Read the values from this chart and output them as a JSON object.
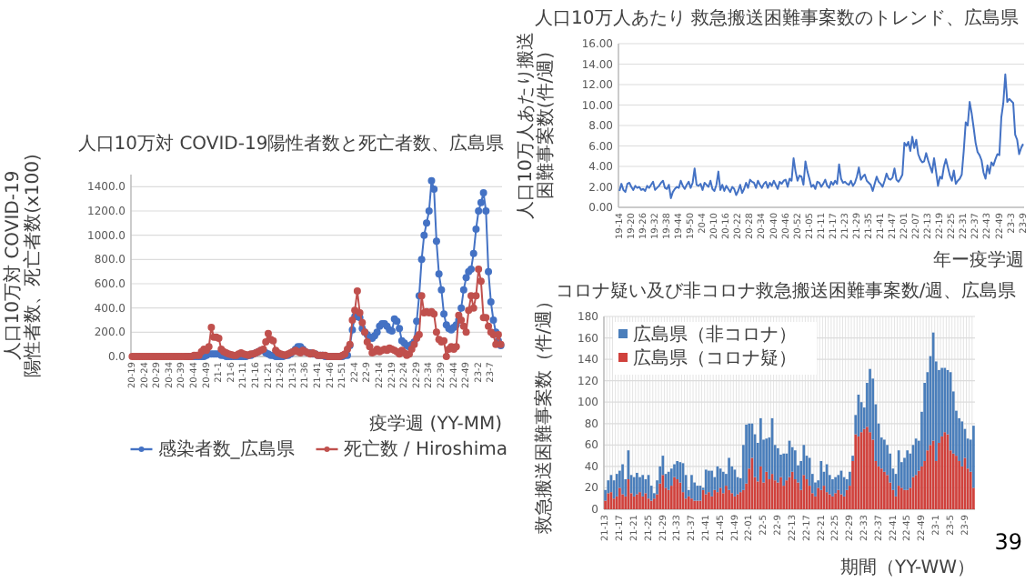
{
  "chart_data": [
    {
      "type": "line",
      "title": "人口10万対 COVID-19陽性者数と死亡者数、広島県",
      "ylabel": "人口10万対 COVID-19陽性者数、死亡者数(x100)",
      "xlabel": "疫学週 (YY-MM)",
      "legend": "bottom",
      "grid": "y",
      "marker": "circle",
      "ylim": [
        0,
        1500
      ],
      "yticks": [
        {
          "value": 0,
          "label": "0.0"
        },
        {
          "value": 200,
          "label": "200.0"
        },
        {
          "value": 400,
          "label": "400.0"
        },
        {
          "value": 600,
          "label": "600.0"
        },
        {
          "value": 800,
          "label": "800.0"
        },
        {
          "value": 1000,
          "label": "1000.0"
        },
        {
          "value": 1200,
          "label": "1200.0"
        },
        {
          "value": 1400,
          "label": "1400.0"
        }
      ],
      "categories": [
        "20-19",
        null,
        null,
        null,
        null,
        "20-24",
        null,
        null,
        null,
        null,
        "20-29",
        null,
        null,
        null,
        null,
        "20-34",
        null,
        null,
        null,
        null,
        "20-39",
        null,
        null,
        null,
        null,
        "20-44",
        null,
        null,
        null,
        null,
        "20-49",
        null,
        null,
        null,
        null,
        "21-1",
        null,
        null,
        null,
        null,
        "21-6",
        null,
        null,
        null,
        null,
        "21-11",
        null,
        null,
        null,
        null,
        "21-16",
        null,
        null,
        null,
        null,
        "21-21",
        null,
        null,
        null,
        null,
        "21-26",
        null,
        null,
        null,
        null,
        "21-31",
        null,
        null,
        null,
        null,
        "21-36",
        null,
        null,
        null,
        null,
        "21-41",
        null,
        null,
        null,
        null,
        "21-46",
        null,
        null,
        null,
        null,
        "21-51",
        null,
        null,
        null,
        null,
        "22-4",
        null,
        null,
        null,
        null,
        "22-9",
        null,
        null,
        null,
        null,
        "22-14",
        null,
        null,
        null,
        null,
        "22-19",
        null,
        null,
        null,
        null,
        "22-24",
        null,
        null,
        null,
        null,
        "22-29",
        null,
        null,
        null,
        null,
        "22-34",
        null,
        null,
        null,
        null,
        "22-39",
        null,
        null,
        null,
        null,
        "22-44",
        null,
        null,
        null,
        null,
        "22-49",
        null,
        null,
        null,
        null,
        "23-2",
        null,
        null,
        null,
        null,
        "23-7",
        null,
        null,
        null,
        null
      ],
      "series": [
        {
          "name": "感染者数_広島県",
          "color": "#4472c4",
          "values": [
            null,
            null,
            null,
            null,
            null,
            null,
            null,
            null,
            null,
            null,
            null,
            null,
            null,
            null,
            null,
            null,
            null,
            null,
            null,
            null,
            null,
            null,
            0,
            0,
            0,
            0,
            0,
            0,
            0,
            0,
            10,
            20,
            20,
            20,
            20,
            20,
            10,
            10,
            0,
            0,
            0,
            0,
            0,
            0,
            0,
            0,
            0,
            10,
            10,
            20,
            30,
            40,
            50,
            50,
            30,
            20,
            10,
            10,
            0,
            0,
            0,
            0,
            10,
            10,
            20,
            40,
            60,
            80,
            80,
            60,
            40,
            30,
            30,
            20,
            20,
            10,
            10,
            10,
            0,
            0,
            0,
            0,
            0,
            0,
            0,
            0,
            10,
            10,
            90,
            220,
            330,
            330,
            320,
            230,
            200,
            180,
            160,
            150,
            170,
            200,
            250,
            270,
            270,
            250,
            220,
            210,
            310,
            290,
            230,
            130,
            110,
            90,
            80,
            100,
            120,
            290,
            500,
            800,
            1000,
            1100,
            1200,
            1450,
            1380,
            950,
            680,
            550,
            350,
            260,
            230,
            220,
            240,
            260,
            300,
            400,
            550,
            650,
            700,
            720,
            850,
            1050,
            1200,
            1270,
            1350,
            1200,
            700,
            450,
            300,
            200,
            130,
            90
          ]
        },
        {
          "name": "死亡数 / Hiroshima",
          "color": "#c0504d",
          "values": [
            0,
            0,
            0,
            0,
            0,
            0,
            0,
            0,
            0,
            0,
            0,
            0,
            0,
            0,
            0,
            0,
            0,
            0,
            0,
            0,
            0,
            0,
            0,
            0,
            0,
            10,
            10,
            10,
            40,
            60,
            50,
            80,
            240,
            160,
            160,
            150,
            60,
            40,
            30,
            20,
            15,
            10,
            10,
            20,
            30,
            20,
            15,
            10,
            20,
            20,
            30,
            40,
            50,
            60,
            120,
            190,
            140,
            130,
            50,
            30,
            20,
            15,
            10,
            20,
            30,
            40,
            50,
            40,
            30,
            50,
            40,
            30,
            20,
            30,
            20,
            10,
            10,
            10,
            10,
            0,
            0,
            0,
            0,
            0,
            0,
            10,
            20,
            60,
            100,
            300,
            380,
            540,
            360,
            280,
            200,
            120,
            80,
            30,
            40,
            60,
            40,
            50,
            60,
            50,
            70,
            60,
            50,
            40,
            20,
            50,
            30,
            10,
            20,
            60,
            100,
            150,
            180,
            500,
            360,
            370,
            360,
            370,
            350,
            200,
            140,
            120,
            130,
            0,
            60,
            80,
            60,
            80,
            340,
            300,
            250,
            200,
            380,
            500,
            400,
            500,
            720,
            620,
            320,
            320,
            250,
            200,
            180,
            100,
            180,
            100
          ]
        }
      ]
    },
    {
      "type": "line",
      "title": "人口10万人あたり 救急搬送困難事案数のトレンド、広島県",
      "ylabel": "人口10万人あたり搬送困難事案数(件/週)",
      "xlabel": "年ー疫学週",
      "grid": "y",
      "ylim": [
        0,
        16
      ],
      "yticks": [
        {
          "value": 0,
          "label": "0.00"
        },
        {
          "value": 2,
          "label": "2.00"
        },
        {
          "value": 4,
          "label": "4.00"
        },
        {
          "value": 6,
          "label": "6.00"
        },
        {
          "value": 8,
          "label": "8.00"
        },
        {
          "value": 10,
          "label": "10.00"
        },
        {
          "value": 12,
          "label": "12.00"
        },
        {
          "value": 14,
          "label": "14.00"
        },
        {
          "value": 16,
          "label": "16.00"
        }
      ],
      "categories": [
        "19-14",
        null,
        null,
        null,
        null,
        null,
        "19-20",
        null,
        null,
        null,
        null,
        null,
        "19-26",
        null,
        null,
        null,
        null,
        null,
        "19-32",
        null,
        null,
        null,
        null,
        null,
        "19-38",
        null,
        null,
        null,
        null,
        null,
        "19-44",
        null,
        null,
        null,
        null,
        null,
        "19-50",
        null,
        null,
        null,
        null,
        null,
        "20-4",
        null,
        null,
        null,
        null,
        null,
        "20-10",
        null,
        null,
        null,
        null,
        null,
        "20-16",
        null,
        null,
        null,
        null,
        null,
        "20-22",
        null,
        null,
        null,
        null,
        null,
        "20-28",
        null,
        null,
        null,
        null,
        null,
        "20-34",
        null,
        null,
        null,
        null,
        null,
        "20-40",
        null,
        null,
        null,
        null,
        null,
        "20-46",
        null,
        null,
        null,
        null,
        null,
        "20-52",
        null,
        null,
        null,
        null,
        null,
        "21-05",
        null,
        null,
        null,
        null,
        null,
        "21-11",
        null,
        null,
        null,
        null,
        null,
        "21-17",
        null,
        null,
        null,
        null,
        null,
        "21-23",
        null,
        null,
        null,
        null,
        null,
        "21-29",
        null,
        null,
        null,
        null,
        null,
        "21-35",
        null,
        null,
        null,
        null,
        null,
        "21-41",
        null,
        null,
        null,
        null,
        null,
        "21-47",
        null,
        null,
        null,
        null,
        null,
        "22-01",
        null,
        null,
        null,
        null,
        null,
        "22-07",
        null,
        null,
        null,
        null,
        null,
        "22-13",
        null,
        null,
        null,
        null,
        null,
        "22-19",
        null,
        null,
        null,
        null,
        null,
        "22-25",
        null,
        null,
        null,
        null,
        null,
        "22-31",
        null,
        null,
        null,
        null,
        null,
        "22-37",
        null,
        null,
        null,
        null,
        null,
        "22-43",
        null,
        null,
        null,
        null,
        null,
        "22-49",
        null,
        null,
        null,
        null,
        null,
        "23-3",
        null,
        null,
        null,
        null,
        null,
        "23-9"
      ],
      "series": [
        {
          "color": "#4472c4",
          "values": [
            1.6,
            2.3,
            1.7,
            1.5,
            2.3,
            2.4,
            2.0,
            1.7,
            2.1,
            1.9,
            2.0,
            1.7,
            1.8,
            1.6,
            2.1,
            1.9,
            2.2,
            2.5,
            1.7,
            1.9,
            2.1,
            2.4,
            2.6,
            1.9,
            1.8,
            2.2,
            0.9,
            1.5,
            1.8,
            2.0,
            1.9,
            2.6,
            2.1,
            1.8,
            2.2,
            2.5,
            1.9,
            2.4,
            3.8,
            2.2,
            2.1,
            2.3,
            1.7,
            2.4,
            2.2,
            2.0,
            2.6,
            1.8,
            1.6,
            2.2,
            3.5,
            1.7,
            2.2,
            1.6,
            2.1,
            1.8,
            1.5,
            2.0,
            1.8,
            1.2,
            1.6,
            2.2,
            1.4,
            1.8,
            2.4,
            1.9,
            2.7,
            2.5,
            2.4,
            1.9,
            2.6,
            2.2,
            1.9,
            2.3,
            2.5,
            1.9,
            2.4,
            2.1,
            2.6,
            2.2,
            1.8,
            2.5,
            2.3,
            2.6,
            2.7,
            2.0,
            2.8,
            2.6,
            4.8,
            3.5,
            2.6,
            3.1,
            3.0,
            2.2,
            4.5,
            3.5,
            2.8,
            2.0,
            2.2,
            1.8,
            2.5,
            2.4,
            2.0,
            2.3,
            2.7,
            2.1,
            1.9,
            2.5,
            2.2,
            2.6,
            2.3,
            4.2,
            2.8,
            2.4,
            2.5,
            2.3,
            2.2,
            2.6,
            2.1,
            2.4,
            3.0,
            3.9,
            2.7,
            3.0,
            3.2,
            2.6,
            2.4,
            2.2,
            1.6,
            2.3,
            3.0,
            2.5,
            2.3,
            2.0,
            2.6,
            3.3,
            2.8,
            2.7,
            2.9,
            3.8,
            2.7,
            2.5,
            2.8,
            3.2,
            6.3,
            6.0,
            6.4,
            5.5,
            6.9,
            5.8,
            6.6,
            5.2,
            4.7,
            4.4,
            4.5,
            5.3,
            4.6,
            4.0,
            3.4,
            4.8,
            3.5,
            2.1,
            3.0,
            2.8,
            4.0,
            4.7,
            3.9,
            3.1,
            2.6,
            3.6,
            2.3,
            2.6,
            2.8,
            3.2,
            5.5,
            8.3,
            8.0,
            10.3,
            9.2,
            7.8,
            6.3,
            5.4,
            5.1,
            4.6,
            3.4,
            2.8,
            4.1,
            3.3,
            4.4,
            4.1,
            4.7,
            5.2,
            5.1,
            8.8,
            10.2,
            13.0,
            10.3,
            10.6,
            10.4,
            10.2,
            7.1,
            6.6,
            5.2,
            5.8,
            6.2
          ]
        }
      ]
    },
    {
      "type": "bar",
      "stacked": true,
      "title": "コロナ疑い及び非コロナ救急搬送困難事案数/週、広島県",
      "ylabel": "救急搬送困難事案数（件/週）",
      "xlabel": "期間（YY-WW）",
      "legend": "top left",
      "grid": true,
      "ylim": [
        0,
        180
      ],
      "yticks": [
        0,
        20,
        40,
        60,
        80,
        100,
        120,
        140,
        160,
        180
      ],
      "annotations": [
        "39"
      ],
      "categories": [
        "21-13",
        null,
        null,
        null,
        null,
        "21-17",
        null,
        null,
        null,
        null,
        "21-21",
        null,
        null,
        null,
        null,
        "21-25",
        null,
        null,
        null,
        null,
        "21-29",
        null,
        null,
        null,
        null,
        "21-33",
        null,
        null,
        null,
        null,
        "21-37",
        null,
        null,
        null,
        null,
        "21-41",
        null,
        null,
        null,
        null,
        "21-45",
        null,
        null,
        null,
        null,
        "21-49",
        null,
        null,
        null,
        null,
        "22-01",
        null,
        null,
        null,
        null,
        "22-5",
        null,
        null,
        null,
        null,
        "22-9",
        null,
        null,
        null,
        null,
        "22-13",
        null,
        null,
        null,
        null,
        "22-17",
        null,
        null,
        null,
        null,
        "22-21",
        null,
        null,
        null,
        null,
        "22-25",
        null,
        null,
        null,
        null,
        "22-29",
        null,
        null,
        null,
        null,
        "22-33",
        null,
        null,
        null,
        null,
        "22-37",
        null,
        null,
        null,
        null,
        "22-41",
        null,
        null,
        null,
        null,
        "22-45",
        null,
        null,
        null,
        null,
        "22-49",
        null,
        null,
        null,
        null,
        "23-1",
        null,
        null,
        null,
        null,
        "23-5",
        null,
        null,
        null,
        null,
        "23-9",
        null,
        null,
        null
      ],
      "series": [
        {
          "name": "広島県（コロナ疑）",
          "color": "#d0413c",
          "values": [
            8,
            15,
            16,
            10,
            12,
            20,
            14,
            12,
            28,
            15,
            12,
            14,
            16,
            12,
            15,
            10,
            8,
            10,
            14,
            24,
            32,
            20,
            18,
            22,
            30,
            28,
            25,
            16,
            10,
            12,
            10,
            8,
            8,
            8,
            18,
            14,
            16,
            12,
            18,
            16,
            20,
            15,
            22,
            18,
            15,
            12,
            14,
            16,
            18,
            24,
            38,
            48,
            30,
            26,
            40,
            25,
            35,
            28,
            33,
            27,
            25,
            30,
            22,
            27,
            30,
            35,
            28,
            25,
            18,
            32,
            28,
            22,
            15,
            12,
            20,
            18,
            22,
            16,
            14,
            12,
            15,
            18,
            14,
            12,
            18,
            22,
            45,
            70,
            68,
            72,
            75,
            77,
            72,
            65,
            45,
            40,
            38,
            35,
            32,
            25,
            18,
            12,
            22,
            20,
            18,
            18,
            20,
            30,
            32,
            36,
            40,
            45,
            55,
            60,
            64,
            45,
            62,
            68,
            72,
            70,
            55,
            52,
            50,
            45,
            40,
            48,
            38,
            35,
            20
          ]
        },
        {
          "name": "広島県（非コロナ）",
          "color": "#4a7ebb",
          "values": [
            10,
            12,
            16,
            17,
            21,
            16,
            28,
            16,
            27,
            17,
            18,
            20,
            14,
            20,
            13,
            22,
            14,
            5,
            13,
            16,
            18,
            13,
            17,
            16,
            12,
            17,
            19,
            27,
            22,
            6,
            22,
            17,
            14,
            14,
            2,
            23,
            20,
            24,
            12,
            24,
            18,
            20,
            11,
            30,
            25,
            25,
            16,
            13,
            42,
            55,
            42,
            32,
            40,
            36,
            45,
            40,
            31,
            39,
            52,
            33,
            32,
            21,
            30,
            25,
            34,
            23,
            27,
            16,
            27,
            28,
            22,
            26,
            18,
            13,
            7,
            27,
            13,
            26,
            18,
            16,
            15,
            14,
            22,
            18,
            10,
            13,
            5,
            18,
            39,
            28,
            20,
            41,
            59,
            57,
            53,
            40,
            29,
            30,
            28,
            27,
            20,
            21,
            33,
            24,
            30,
            37,
            32,
            30,
            34,
            28,
            51,
            73,
            73,
            83,
            101,
            93,
            68,
            64,
            60,
            60,
            73,
            58,
            42,
            40,
            42,
            27,
            28,
            30,
            58
          ]
        }
      ]
    }
  ]
}
